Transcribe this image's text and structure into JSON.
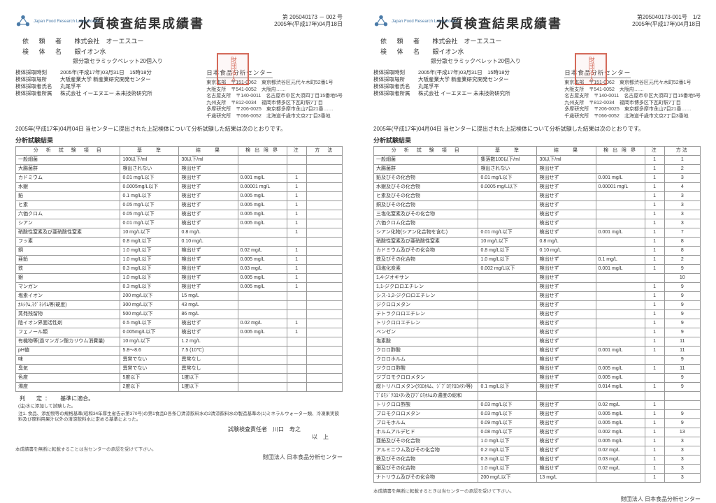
{
  "logo_org": "Japan\nFood\nResearch\nLaboratories",
  "logo_color": "#4a7ba8",
  "stamp_color": "#d46a5a",
  "title": "水質検査結果成績書",
  "org_name": "日本食品分析センター",
  "footer_org_prefix": "財団法人",
  "sheets": [
    {
      "doc_no_line1": "第 205040173 － 002 号",
      "doc_no_line2": "2005年(平成17年)04月18日",
      "client_label": "依 頼 者",
      "client_value": "株式会社　オーエスユー",
      "sample_label": "検 体 名",
      "sample_value": "銀イオン水",
      "sample_detail": "銀分散セラミックペレット20個入り",
      "meta": [
        {
          "k": "検体採取時刻",
          "v": "2005年(平成17年)03月31日　15時18分"
        },
        {
          "k": "検体採取場所",
          "v": "大阪産業大学  新産業研究開発センター"
        },
        {
          "k": "検体採取者氏名",
          "v": "丸尾孚平"
        },
        {
          "k": "検体採取者所属",
          "v": "株式会社  イーエヌエー  未来技術研究所"
        }
      ],
      "addresses": [
        "東京本部　〒151-0062　東京都渋谷区元代々木町52番1号",
        "大阪支所　〒541-0052　大阪府……",
        "名古屋支所　〒140-0011　名古屋市中区大須四丁目15番地5号",
        "九州支所　〒812-0034　福岡市博多区下瓦町駅7丁目",
        "多摩研究所　〒206-0025　東京都多摩市永山7目21番……",
        "千歳研究所　〒066-0052　北海道千歳市文京2丁目3番地"
      ],
      "intro": "2005年(平成17年)04月04日 当センターに提出された上記検体について分析試験した結果は次のとおりです。",
      "section": "分析試験結果",
      "columns": [
        "分　析　試　験　項　目",
        "基　　準",
        "結　　果",
        "検 出 限 界",
        "注",
        "方　法"
      ],
      "rows": [
        [
          "一般細菌",
          "100以下/ml",
          "30以下/ml",
          "",
          "",
          ""
        ],
        [
          "大腸菌群",
          "検出されない",
          "検出せず",
          "",
          "",
          ""
        ],
        [
          "カドミウム",
          "0.01 mg/L以下",
          "検出せず",
          "0.001 mg/L",
          "1",
          ""
        ],
        [
          "水銀",
          "0.0005mg/L以下",
          "検出せず",
          "0.00001 mg/L",
          "1",
          ""
        ],
        [
          "鉛",
          "0.1 mg/L以下",
          "検出せず",
          "0.005 mg/L",
          "1",
          ""
        ],
        [
          "ヒ素",
          "0.05 mg/L以下",
          "検出せず",
          "0.005 mg/L",
          "1",
          ""
        ],
        [
          "六価クロム",
          "0.05 mg/L以下",
          "検出せず",
          "0.005 mg/L",
          "1",
          ""
        ],
        [
          "シアン",
          "0.01 mg/L以下",
          "検出せず",
          "0.005 mg/L",
          "1",
          ""
        ],
        [
          "硝酸性窒素及び亜硝酸性窒素",
          "10 mg/L以下",
          "0.8 mg/L",
          "",
          "1",
          ""
        ],
        [
          "フッ素",
          "0.8 mg/L以下",
          "0.10 mg/L",
          "",
          "",
          ""
        ],
        [
          "銅",
          "1.0 mg/L以下",
          "検出せず",
          "0.02 mg/L",
          "1",
          ""
        ],
        [
          "亜鉛",
          "1.0 mg/L以下",
          "検出せず",
          "0.005 mg/L",
          "1",
          ""
        ],
        [
          "鉄",
          "0.3 mg/L以下",
          "検出せず",
          "0.03 mg/L",
          "1",
          ""
        ],
        [
          "銀",
          "1.0 mg/L以下",
          "検出せず",
          "0.005 mg/L",
          "1",
          ""
        ],
        [
          "マンガン",
          "0.3 mg/L以下",
          "検出せず",
          "0.005 mg/L",
          "1",
          ""
        ],
        [
          "塩素イオン",
          "200 mg/L以下",
          "15 mg/L",
          "",
          "",
          ""
        ],
        [
          "ｶﾙｼｳﾑ,ﾏｸﾞﾈｼｳﾑ等(硬度)",
          "300 mg/L以下",
          "43 mg/L",
          "",
          "",
          ""
        ],
        [
          "蒸発残留物",
          "500 mg/L以下",
          "86 mg/L",
          "",
          "",
          ""
        ],
        [
          "陰イオン界面活性剤",
          "0.5 mg/L以下",
          "検出せず",
          "0.02 mg/L",
          "1",
          ""
        ],
        [
          "フェノール類",
          "0.005mg/L以下",
          "検出せず",
          "0.005 mg/L",
          "1",
          ""
        ],
        [
          "有機物等(過マンガン酸カリウム消費量)",
          "10 mg/L以下",
          "1.2 mg/L",
          "",
          "",
          ""
        ],
        [
          "pH値",
          "5.8～8.6",
          "7.5 (10℃)",
          "",
          "",
          ""
        ],
        [
          "味",
          "異常でない",
          "異常なし",
          "",
          "",
          ""
        ],
        [
          "臭気",
          "異常でない",
          "異常なし",
          "",
          "",
          ""
        ],
        [
          "色度",
          "5度以下",
          "1度以下",
          "",
          "",
          ""
        ],
        [
          "濁度",
          "2度以下",
          "1度以下",
          "",
          "",
          ""
        ]
      ],
      "verdict_label": "判　定：",
      "verdict_value": "基準に適合。",
      "footnotes": [
        "(注)水に添加して試験した。",
        "注1. 食品、添加物等の規格基準(昭和34年厚生省告示第370号)の第1食品D各条〇清涼飲料水の2清涼飲料水の製造基準の(1)ミネラルウォーター類、冷凍果実飲料及び原料用果汁以外の清涼飲料水に定める基準によった。"
      ],
      "signer": "試験検査責任者　川口　寿之",
      "end": "以　上",
      "footer_note": "本成績書を無断に転載することは当センターの承認を受けて下さい。"
    },
    {
      "doc_no_line1": "第205040173-001号　1/2",
      "doc_no_line2": "2005年(平成17年)04月18日",
      "client_label": "依 頼 者",
      "client_value": "株式会社　オーエスユー",
      "sample_label": "検 体 名",
      "sample_value": "銀イオン水",
      "sample_detail": "銀分散セラミックペレット20個入り",
      "meta": [
        {
          "k": "検体採取時刻",
          "v": "2005年(平成17年)03月31日　15時18分"
        },
        {
          "k": "検体採取場所",
          "v": "大阪産業大学  新産業研究開発センター"
        },
        {
          "k": "検体採取者氏名",
          "v": "丸尾孚平"
        },
        {
          "k": "検体採取者所属",
          "v": "株式会社  イーエヌエー  未来技術研究所"
        }
      ],
      "addresses": [
        "東京本部　〒151-0062　東京都渋谷区元代々木町52番1号",
        "大阪支所　〒541-0052　大阪府……",
        "名古屋支所　〒140-0011　名古屋市中区大須四丁目15番地5号",
        "九州支所　〒812-0034　福岡市博多区下瓦町駅7丁目",
        "多摩研究所　〒206-0025　東京都多摩市永山7目21番……",
        "千歳研究所　〒066-0052　北海道千歳市文京2丁目3番地"
      ],
      "intro": "2005年(平成17年)04月04日 当センターに提出された上記検体について分析試験した結果は次のとおりです。",
      "section": "分析試験結果",
      "columns": [
        "分　析　試　験　項　目",
        "基　　準",
        "結　　果",
        "検 出 限 界",
        "注",
        "方法"
      ],
      "rows": [
        [
          "一般細菌",
          "集落数100以下/ml",
          "30以下/ml",
          "",
          "1",
          "1"
        ],
        [
          "大腸菌群",
          "検出されない",
          "検出せず",
          "",
          "1",
          "2"
        ],
        [
          "鉛及びその化合物",
          "0.01 mg/L以下",
          "検出せず",
          "0.001 mg/L",
          "1",
          "3"
        ],
        [
          "水銀及びその化合物",
          "0.0005 mg/L以下",
          "検出せず",
          "0.00001 mg/L",
          "1",
          "4"
        ],
        [
          "ヒ素及びその化合物",
          "",
          "検出せず",
          "",
          "1",
          "3"
        ],
        [
          "銅及びその化合物",
          "",
          "検出せず",
          "",
          "1",
          "3"
        ],
        [
          "三塩化窒素及びその化合物",
          "",
          "検出せず",
          "",
          "1",
          "3"
        ],
        [
          "六価クロム化合物",
          "",
          "検出せず",
          "",
          "1",
          "3"
        ],
        [
          "シアン化物(シアン化合物を含む)",
          "0.01 mg/L以下",
          "検出せず",
          "0.001 mg/L",
          "1",
          "7"
        ],
        [
          "硝酸性窒素及び亜硝酸性窒素",
          "10 mg/L以下",
          "0.8 mg/L",
          "",
          "1",
          "8"
        ],
        [
          "カドミウム及びその化合物",
          "0.8 mg/L以下",
          "0.10 mg/L",
          "",
          "1",
          "8"
        ],
        [
          "鉄及びその化合物",
          "1.0 mg/L以下",
          "検出せず",
          "0.1 mg/L",
          "1",
          "2"
        ],
        [
          "四塩化炭素",
          "0.002 mg/L以下",
          "検出せず",
          "0.001 mg/L",
          "1",
          "9"
        ],
        [
          "1,4-ジオキサン",
          "",
          "検出せず",
          "",
          "",
          "10"
        ],
        [
          "1,1-ジクロロエチレン",
          "",
          "検出せず",
          "",
          "1",
          "9"
        ],
        [
          "シス-1,2-ジクロロエチレン",
          "",
          "検出せず",
          "",
          "1",
          "9"
        ],
        [
          "ジクロロメタン",
          "",
          "検出せず",
          "",
          "1",
          "9"
        ],
        [
          "テトラクロロエチレン",
          "",
          "検出せず",
          "",
          "1",
          "9"
        ],
        [
          "トリクロロエチレン",
          "",
          "検出せず",
          "",
          "1",
          "9"
        ],
        [
          "ベンゼン",
          "",
          "検出せず",
          "",
          "1",
          "9"
        ],
        [
          "塩素酸",
          "",
          "検出せず",
          "",
          "1",
          "11"
        ],
        [
          "クロロ酢酸",
          "",
          "検出せず",
          "0.001 mg/L",
          "1",
          "11"
        ],
        [
          "クロロホルム",
          "",
          "検出せず",
          "",
          "",
          "9"
        ],
        [
          "ジクロロ酢酸",
          "",
          "検出せず",
          "0.005 mg/L",
          "1",
          "11"
        ],
        [
          "ジブロモクロロメタン",
          "",
          "検出せず",
          "0.005 mg/L",
          "",
          "9"
        ],
        [
          "総トリハロメタン(ｸﾛﾛﾎﾙﾑ、ｼﾞﾌﾞﾛﾓｸﾛﾛﾒﾀﾝ等)",
          "0.1 mg/L以下",
          "検出せず",
          "0.014 mg/L",
          "1",
          "9"
        ],
        [
          "ﾌﾞﾛﾓｼﾞｸﾛﾛﾒﾀﾝ及びﾌﾞﾛﾓﾎﾙﾑの濃度の総和",
          "",
          "",
          "",
          "",
          ""
        ],
        [
          "トリクロロ酢酸",
          "0.03 mg/L以下",
          "検出せず",
          "0.02 mg/L",
          "1",
          ""
        ],
        [
          "ブロモクロロメタン",
          "0.03 mg/L以下",
          "検出せず",
          "0.005 mg/L",
          "1",
          "9"
        ],
        [
          "ブロモホルム",
          "0.09 mg/L以下",
          "検出せず",
          "0.005 mg/L",
          "1",
          "9"
        ],
        [
          "ホルムアルデヒド",
          "0.08 mg/L以下",
          "検出せず",
          "0.002 mg/L",
          "1",
          "13"
        ],
        [
          "亜鉛及びその化合物",
          "1.0 mg/L以下",
          "検出せず",
          "0.005 mg/L",
          "1",
          "3"
        ],
        [
          "アルミニウム及びその化合物",
          "0.2 mg/L以下",
          "検出せず",
          "0.02 mg/L",
          "1",
          "3"
        ],
        [
          "鉄及びその化合物",
          "0.3 mg/L以下",
          "検出せず",
          "0.03 mg/L",
          "1",
          "3"
        ],
        [
          "銀及びその化合物",
          "1.0 mg/L以下",
          "検出せず",
          "0.02 mg/L",
          "1",
          "3"
        ],
        [
          "ナトリウム及びその化合物",
          "200 mg/L以下",
          "13 mg/L",
          "",
          "1",
          "3"
        ]
      ],
      "footer_note": "本成績書を無断に転載するときは当センターの承認を受けて下さい。"
    }
  ]
}
